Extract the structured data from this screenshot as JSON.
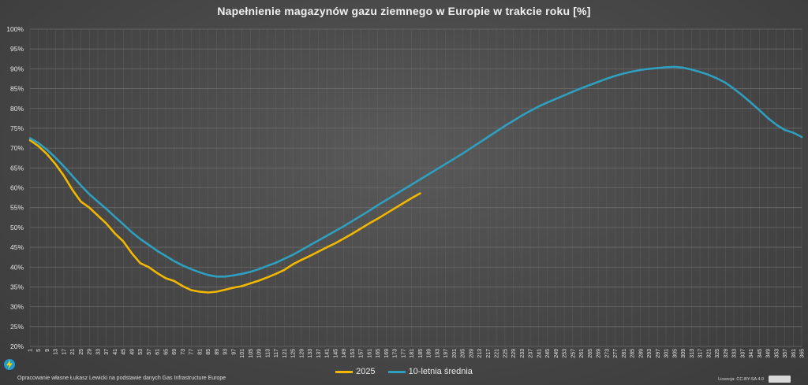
{
  "chart_data": {
    "type": "line",
    "title": "Napełnienie magazynów gazu ziemnego w Europie w trakcie roku [%]",
    "xlabel": "",
    "ylabel": "",
    "ylim": [
      20,
      100
    ],
    "yticks": [
      "20%",
      "25%",
      "30%",
      "35%",
      "40%",
      "45%",
      "50%",
      "55%",
      "60%",
      "65%",
      "70%",
      "75%",
      "80%",
      "85%",
      "90%",
      "95%",
      "100%"
    ],
    "xlim": [
      1,
      365
    ],
    "xtick_start": 1,
    "xtick_step": 4,
    "grid": true,
    "legend_position": "bottom",
    "series": [
      {
        "name": "2025",
        "color": "#f2b800",
        "points": [
          [
            1,
            72
          ],
          [
            5,
            70.5
          ],
          [
            9,
            68.5
          ],
          [
            13,
            66
          ],
          [
            17,
            63
          ],
          [
            21,
            59.5
          ],
          [
            25,
            56.5
          ],
          [
            29,
            55
          ],
          [
            33,
            53
          ],
          [
            37,
            51
          ],
          [
            41,
            48.5
          ],
          [
            45,
            46.5
          ],
          [
            49,
            43.5
          ],
          [
            53,
            41
          ],
          [
            57,
            40
          ],
          [
            61,
            38.5
          ],
          [
            65,
            37.2
          ],
          [
            69,
            36.5
          ],
          [
            73,
            35.2
          ],
          [
            77,
            34.2
          ],
          [
            81,
            33.8
          ],
          [
            85,
            33.6
          ],
          [
            89,
            33.8
          ],
          [
            93,
            34.3
          ],
          [
            97,
            34.8
          ],
          [
            101,
            35.2
          ],
          [
            105,
            35.9
          ],
          [
            109,
            36.6
          ],
          [
            113,
            37.4
          ],
          [
            117,
            38.3
          ],
          [
            121,
            39.3
          ],
          [
            125,
            40.7
          ],
          [
            129,
            41.8
          ],
          [
            133,
            42.8
          ],
          [
            137,
            43.9
          ],
          [
            141,
            45
          ],
          [
            145,
            46
          ],
          [
            149,
            47.2
          ],
          [
            153,
            48.4
          ],
          [
            157,
            49.7
          ],
          [
            161,
            51
          ],
          [
            165,
            52.2
          ],
          [
            169,
            53.5
          ],
          [
            173,
            54.8
          ],
          [
            177,
            56.1
          ],
          [
            181,
            57.4
          ],
          [
            185,
            58.6
          ]
        ]
      },
      {
        "name": "10-letnia średnia",
        "color": "#2e9fbf",
        "points": [
          [
            1,
            72.5
          ],
          [
            5,
            71.3
          ],
          [
            9,
            69.6
          ],
          [
            13,
            67.6
          ],
          [
            17,
            65.4
          ],
          [
            21,
            63
          ],
          [
            25,
            60.6
          ],
          [
            29,
            58.4
          ],
          [
            33,
            56.5
          ],
          [
            37,
            54.7
          ],
          [
            41,
            52.7
          ],
          [
            45,
            50.8
          ],
          [
            49,
            48.8
          ],
          [
            53,
            47.1
          ],
          [
            57,
            45.6
          ],
          [
            61,
            44.1
          ],
          [
            65,
            42.8
          ],
          [
            69,
            41.5
          ],
          [
            73,
            40.4
          ],
          [
            77,
            39.5
          ],
          [
            81,
            38.7
          ],
          [
            85,
            38
          ],
          [
            89,
            37.6
          ],
          [
            93,
            37.6
          ],
          [
            97,
            37.9
          ],
          [
            101,
            38.3
          ],
          [
            105,
            38.8
          ],
          [
            109,
            39.5
          ],
          [
            113,
            40.3
          ],
          [
            117,
            41.1
          ],
          [
            121,
            42.1
          ],
          [
            125,
            43.1
          ],
          [
            129,
            44.3
          ],
          [
            133,
            45.5
          ],
          [
            137,
            46.7
          ],
          [
            141,
            47.9
          ],
          [
            145,
            49.1
          ],
          [
            149,
            50.3
          ],
          [
            153,
            51.6
          ],
          [
            157,
            52.9
          ],
          [
            161,
            54.2
          ],
          [
            165,
            55.6
          ],
          [
            169,
            56.9
          ],
          [
            173,
            58.2
          ],
          [
            177,
            59.5
          ],
          [
            181,
            60.8
          ],
          [
            185,
            62.1
          ],
          [
            189,
            63.4
          ],
          [
            193,
            64.7
          ],
          [
            197,
            66
          ],
          [
            201,
            67.3
          ],
          [
            205,
            68.6
          ],
          [
            209,
            70
          ],
          [
            213,
            71.4
          ],
          [
            217,
            72.8
          ],
          [
            221,
            74.2
          ],
          [
            225,
            75.6
          ],
          [
            229,
            76.9
          ],
          [
            233,
            78.2
          ],
          [
            237,
            79.4
          ],
          [
            241,
            80.5
          ],
          [
            245,
            81.5
          ],
          [
            249,
            82.4
          ],
          [
            253,
            83.3
          ],
          [
            257,
            84.2
          ],
          [
            261,
            85.1
          ],
          [
            265,
            85.9
          ],
          [
            269,
            86.7
          ],
          [
            273,
            87.5
          ],
          [
            277,
            88.2
          ],
          [
            281,
            88.8
          ],
          [
            285,
            89.3
          ],
          [
            289,
            89.7
          ],
          [
            293,
            90
          ],
          [
            297,
            90.2
          ],
          [
            301,
            90.4
          ],
          [
            305,
            90.5
          ],
          [
            309,
            90.3
          ],
          [
            313,
            89.8
          ],
          [
            317,
            89.2
          ],
          [
            321,
            88.5
          ],
          [
            325,
            87.6
          ],
          [
            329,
            86.5
          ],
          [
            333,
            85
          ],
          [
            337,
            83.3
          ],
          [
            341,
            81.5
          ],
          [
            345,
            79.6
          ],
          [
            349,
            77.6
          ],
          [
            353,
            75.9
          ],
          [
            357,
            74.6
          ],
          [
            361,
            73.9
          ],
          [
            365,
            72.8
          ]
        ]
      }
    ]
  },
  "footer": {
    "source": "Opracowanie własne Łukasz Lewicki na podstawie danych Gas Infrastructure Europe",
    "license": "Licencja: CC-BY-SA 4.0"
  },
  "colors": {
    "grid": "#6a6a6a",
    "axis_text": "#e6e6e6"
  }
}
